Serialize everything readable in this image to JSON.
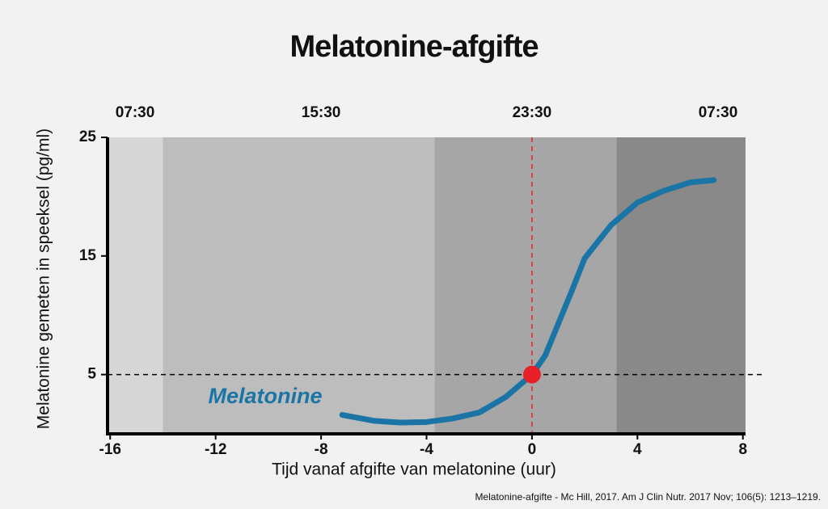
{
  "chart_data": {
    "type": "line",
    "title": "Melatonine-afgifte",
    "x_label": "Tijd vanaf afgifte van melatonine (uur)",
    "y_label": "Melatonine gemeten in speeksel (pg/ml)",
    "source": "Melatonine-afgifte - Mc Hill, 2017. Am J Clin Nutr. 2017 Nov; 106(5): 1213–1219.",
    "xlim": [
      -16.1,
      8.1
    ],
    "ylim": [
      0,
      25
    ],
    "xticks": [
      -16,
      -12,
      -8,
      -4,
      0,
      4,
      8
    ],
    "yticks": [
      5,
      15,
      25
    ],
    "top_ticks": [
      {
        "value": -16,
        "label": "07:30"
      },
      {
        "value": -8,
        "label": "15:30"
      },
      {
        "value": 0,
        "label": "23:30"
      },
      {
        "value": 8,
        "label": "07:30"
      }
    ],
    "bands": [
      {
        "start": -16.1,
        "end": -14,
        "color": "#d6d6d6"
      },
      {
        "start": -14,
        "end": -3.7,
        "color": "#bdbdbd"
      },
      {
        "start": -3.7,
        "end": 3.2,
        "color": "#a6a6a6"
      },
      {
        "start": 3.2,
        "end": 8.1,
        "color": "#898989"
      }
    ],
    "hline": 5,
    "vline": 0,
    "marker": {
      "x": 0,
      "y": 5,
      "color": "#e8202a"
    },
    "series": [
      {
        "name": "Melatonine",
        "color": "#1a75a6",
        "x": [
          -7.2,
          -6,
          -5,
          -4,
          -3,
          -2,
          -1,
          0,
          0.5,
          1,
          1.5,
          2,
          3,
          4,
          5,
          6,
          6.9
        ],
        "values": [
          1.6,
          1.1,
          0.95,
          1.0,
          1.3,
          1.8,
          3.1,
          5,
          6.6,
          9.3,
          12,
          14.8,
          17.6,
          19.5,
          20.5,
          21.2,
          21.4
        ]
      }
    ]
  }
}
